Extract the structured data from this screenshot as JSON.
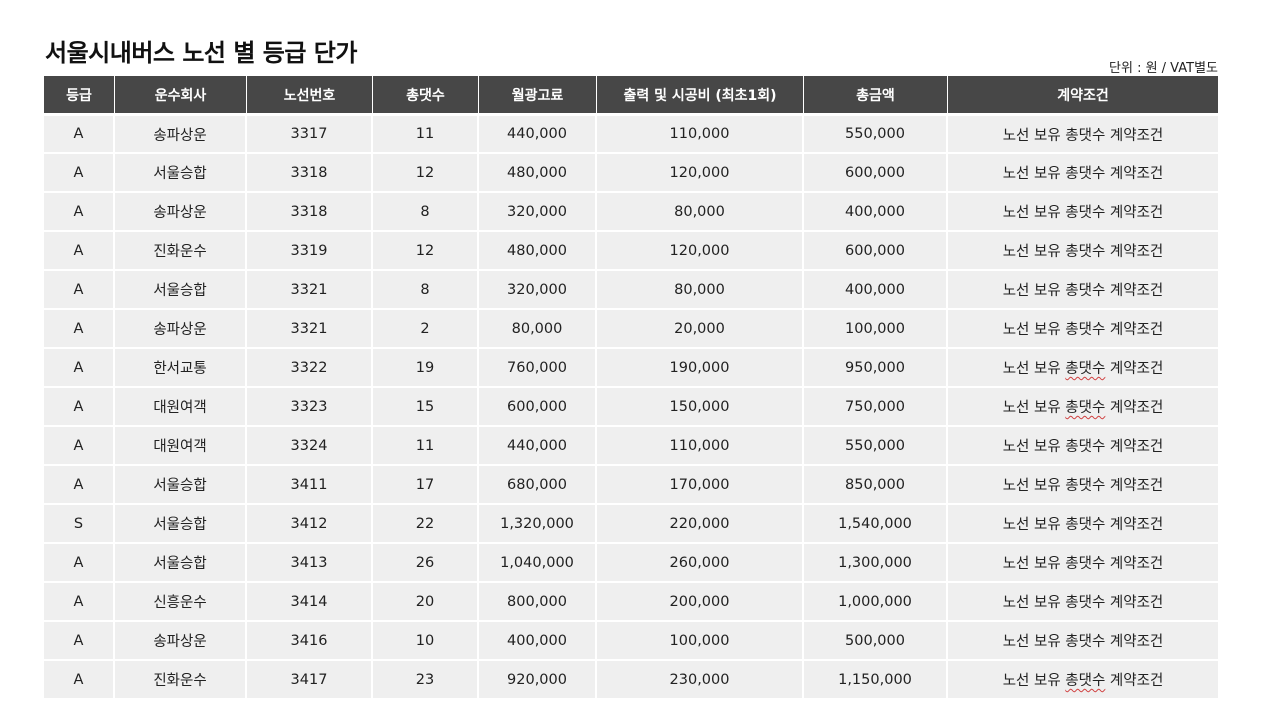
{
  "title": "서울시내버스 노선 별 등급 단가",
  "unit_note": "단위 : 원 / VAT별도",
  "table": {
    "headers": [
      "등급",
      "운수회사",
      "노선번호",
      "총댓수",
      "월광고료",
      "출력 및 시공비 (최초1회)",
      "총금액",
      "계약조건"
    ],
    "rows": [
      [
        "A",
        "송파상운",
        "3317",
        "11",
        "440,000",
        "110,000",
        "550,000",
        "노선 보유 총댓수 계약조건"
      ],
      [
        "A",
        "서울승합",
        "3318",
        "12",
        "480,000",
        "120,000",
        "600,000",
        "노선 보유 총댓수 계약조건"
      ],
      [
        "A",
        "송파상운",
        "3318",
        "8",
        "320,000",
        "80,000",
        "400,000",
        "노선 보유 총댓수 계약조건"
      ],
      [
        "A",
        "진화운수",
        "3319",
        "12",
        "480,000",
        "120,000",
        "600,000",
        "노선 보유 총댓수 계약조건"
      ],
      [
        "A",
        "서울승합",
        "3321",
        "8",
        "320,000",
        "80,000",
        "400,000",
        "노선 보유 총댓수 계약조건"
      ],
      [
        "A",
        "송파상운",
        "3321",
        "2",
        "80,000",
        "20,000",
        "100,000",
        "노선 보유 총댓수 계약조건"
      ],
      [
        "A",
        "한서교통",
        "3322",
        "19",
        "760,000",
        "190,000",
        "950,000",
        "노선 보유 총댓수 계약조건"
      ],
      [
        "A",
        "대원여객",
        "3323",
        "15",
        "600,000",
        "150,000",
        "750,000",
        "노선 보유 총댓수 계약조건"
      ],
      [
        "A",
        "대원여객",
        "3324",
        "11",
        "440,000",
        "110,000",
        "550,000",
        "노선 보유 총댓수 계약조건"
      ],
      [
        "A",
        "서울승합",
        "3411",
        "17",
        "680,000",
        "170,000",
        "850,000",
        "노선 보유 총댓수 계약조건"
      ],
      [
        "S",
        "서울승합",
        "3412",
        "22",
        "1,320,000",
        "220,000",
        "1,540,000",
        "노선 보유 총댓수 계약조건"
      ],
      [
        "A",
        "서울승합",
        "3413",
        "26",
        "1,040,000",
        "260,000",
        "1,300,000",
        "노선 보유 총댓수 계약조건"
      ],
      [
        "A",
        "신흥운수",
        "3414",
        "20",
        "800,000",
        "200,000",
        "1,000,000",
        "노선 보유 총댓수 계약조건"
      ],
      [
        "A",
        "송파상운",
        "3416",
        "10",
        "400,000",
        "100,000",
        "500,000",
        "노선 보유 총댓수 계약조건"
      ],
      [
        "A",
        "진화운수",
        "3417",
        "23",
        "920,000",
        "230,000",
        "1,150,000",
        "노선 보유 총댓수 계약조건"
      ]
    ]
  }
}
